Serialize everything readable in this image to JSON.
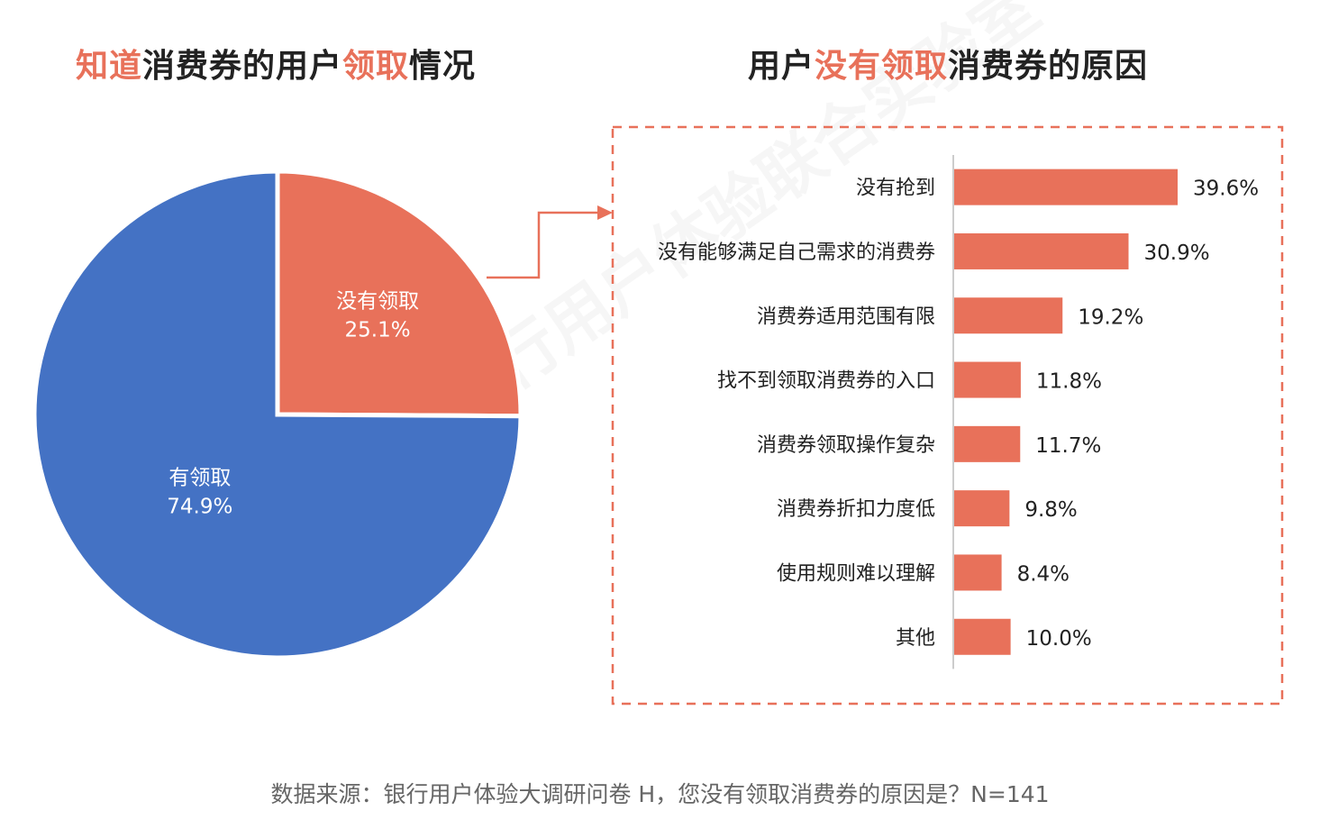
{
  "watermark": "银行用户体验联合实验室",
  "left_title": {
    "parts": [
      {
        "text": "知道",
        "highlight": true
      },
      {
        "text": "消费券的用户",
        "highlight": false
      },
      {
        "text": "领取",
        "highlight": true
      },
      {
        "text": "情况",
        "highlight": false
      }
    ]
  },
  "right_title": {
    "parts": [
      {
        "text": "用户",
        "highlight": false
      },
      {
        "text": "没有领取",
        "highlight": true
      },
      {
        "text": "消费券的原因",
        "highlight": false
      }
    ]
  },
  "colors": {
    "accent": "#E8715A",
    "blue": "#4472C4",
    "dashed_border": "#E8715A"
  },
  "chart_data": [
    {
      "type": "pie",
      "slices": [
        {
          "label": "没有领取",
          "value": 25.1,
          "value_label": "25.1%",
          "color": "#E8715A"
        },
        {
          "label": "有领取",
          "value": 74.9,
          "value_label": "74.9%",
          "color": "#4472C4"
        }
      ],
      "exploded_slice": "没有领取"
    },
    {
      "type": "bar",
      "orientation": "horizontal",
      "categories": [
        "没有抢到",
        "没有能够满足自己需求的消费券",
        "消费券适用范围有限",
        "找不到领取消费券的入口",
        "消费券领取操作复杂",
        "消费券折扣力度低",
        "使用规则难以理解",
        "其他"
      ],
      "values": [
        39.6,
        30.9,
        19.2,
        11.8,
        11.7,
        9.8,
        8.4,
        10.0
      ],
      "value_labels": [
        "39.6%",
        "30.9%",
        "19.2%",
        "11.8%",
        "11.7%",
        "9.8%",
        "8.4%",
        "10.0%"
      ],
      "color": "#E8715A"
    }
  ],
  "source": "数据来源：银行用户体验大调研问卷 H，您没有领取消费券的原因是？N=141"
}
